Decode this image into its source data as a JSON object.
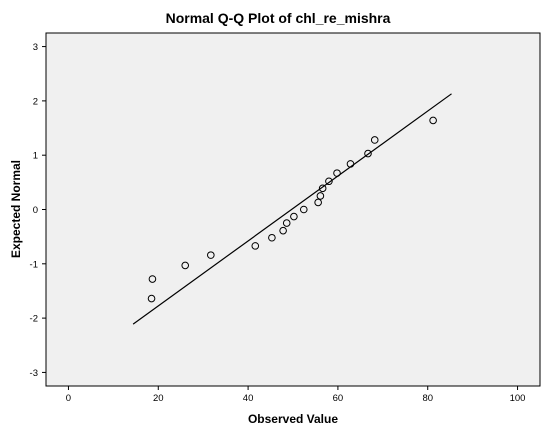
{
  "chart_data": {
    "type": "scatter",
    "title": "Normal Q-Q Plot of chl_re_mishra",
    "xlabel": "Observed Value",
    "ylabel": "Expected Normal",
    "xlim": [
      -5,
      105
    ],
    "ylim": [
      -3.25,
      3.25
    ],
    "xticks": [
      "0",
      "20",
      "40",
      "60",
      "80",
      "100"
    ],
    "yticks": [
      "-3",
      "-2",
      "-1",
      "0",
      "1",
      "2",
      "3"
    ],
    "grid": false,
    "legend": "none",
    "colors": {
      "plot_background": "#f0f0f0",
      "marker": "#000000",
      "line": "#000000"
    },
    "points": [
      {
        "x": 18.5,
        "y": -1.64
      },
      {
        "x": 18.7,
        "y": -1.28
      },
      {
        "x": 26.0,
        "y": -1.03
      },
      {
        "x": 31.7,
        "y": -0.84
      },
      {
        "x": 41.6,
        "y": -0.67
      },
      {
        "x": 45.3,
        "y": -0.52
      },
      {
        "x": 47.8,
        "y": -0.39
      },
      {
        "x": 48.6,
        "y": -0.25
      },
      {
        "x": 50.2,
        "y": -0.13
      },
      {
        "x": 52.4,
        "y": 0.0
      },
      {
        "x": 55.6,
        "y": 0.13
      },
      {
        "x": 56.1,
        "y": 0.25
      },
      {
        "x": 56.6,
        "y": 0.39
      },
      {
        "x": 58.0,
        "y": 0.52
      },
      {
        "x": 59.8,
        "y": 0.67
      },
      {
        "x": 62.8,
        "y": 0.84
      },
      {
        "x": 66.7,
        "y": 1.03
      },
      {
        "x": 68.2,
        "y": 1.28
      },
      {
        "x": 81.2,
        "y": 1.64
      }
    ],
    "reference_line": {
      "x": [
        14.4,
        85.3
      ],
      "y": [
        -2.11,
        2.13
      ]
    }
  }
}
